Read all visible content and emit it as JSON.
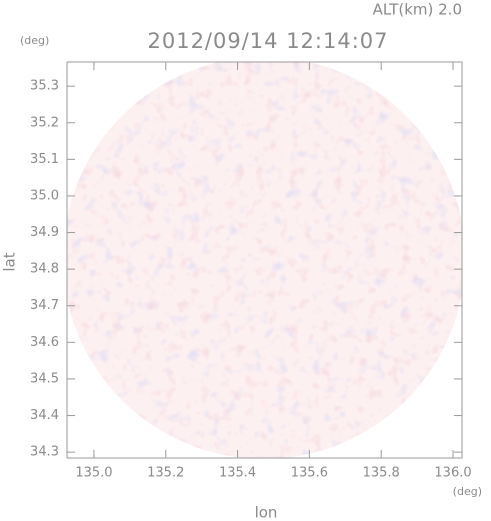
{
  "chart_data": {
    "type": "radar-map",
    "title": "2012/09/14 12:14:07",
    "subtitle": "ALT(km) 2.0",
    "y_unit": "(deg)",
    "x_unit": "(deg)",
    "xlabel": "lon",
    "ylabel": "lat",
    "xlim": [
      134.925,
      136.025
    ],
    "ylim": [
      34.284,
      35.366
    ],
    "xticks": [
      {
        "value": 135.0,
        "label": "135.0"
      },
      135.2,
      135.4,
      135.6,
      135.8,
      {
        "value": 136.0,
        "label": "136.0"
      }
    ],
    "yticks": [
      34.3,
      34.4,
      34.5,
      34.6,
      34.7,
      34.8,
      34.9,
      {
        "value": 35.0,
        "label": "35.0"
      },
      35.1,
      35.2,
      35.3
    ]
  }
}
